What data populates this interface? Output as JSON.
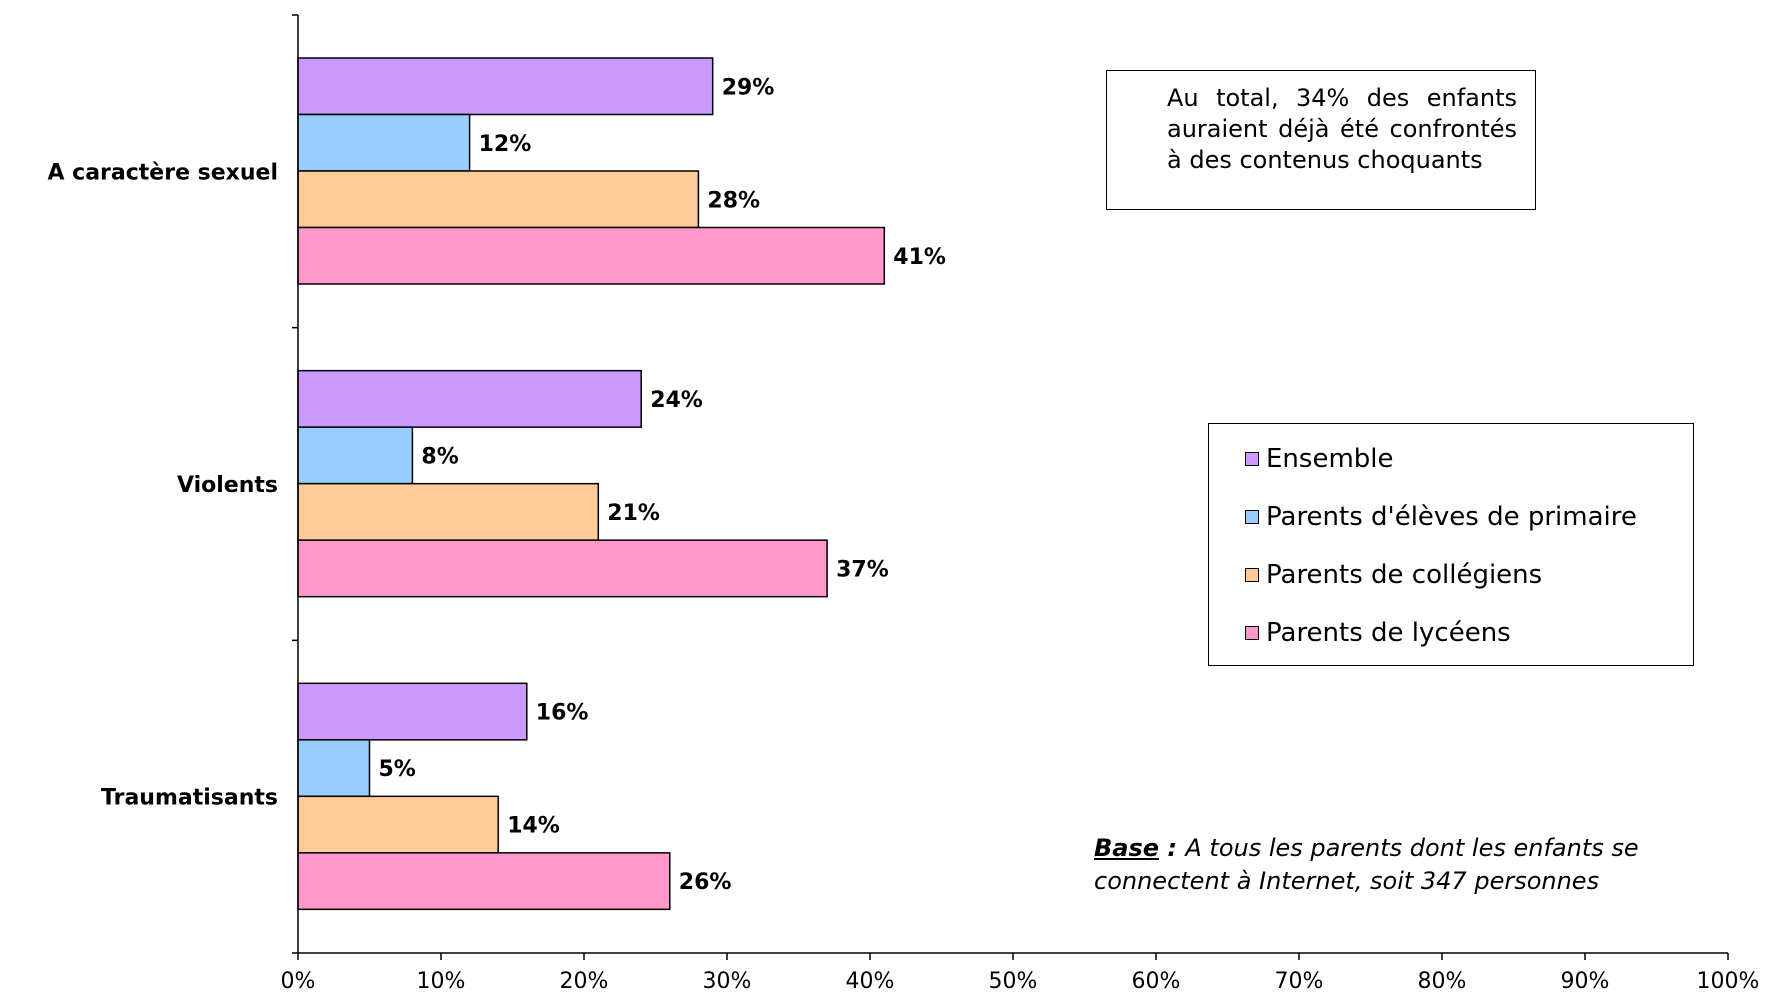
{
  "chart_data": {
    "type": "bar",
    "orientation": "horizontal",
    "categories": [
      "A caractère sexuel",
      "Violents",
      "Traumatisants"
    ],
    "series": [
      {
        "name": "Ensemble",
        "color": "#CC99FF",
        "values": [
          29,
          24,
          16
        ]
      },
      {
        "name": "Parents d'élèves de primaire",
        "color": "#99CCFF",
        "values": [
          12,
          8,
          5
        ]
      },
      {
        "name": "Parents de collégiens",
        "color": "#FFCC99",
        "values": [
          28,
          21,
          14
        ]
      },
      {
        "name": "Parents de lycéens",
        "color": "#FF99CC",
        "values": [
          41,
          37,
          26
        ]
      }
    ],
    "value_labels": [
      [
        "29%",
        "24%",
        "16%"
      ],
      [
        "12%",
        "8%",
        "5%"
      ],
      [
        "28%",
        "21%",
        "14%"
      ],
      [
        "41%",
        "37%",
        "26%"
      ]
    ],
    "xlim": [
      0,
      100
    ],
    "x_ticks": [
      "0%",
      "10%",
      "20%",
      "30%",
      "40%",
      "50%",
      "60%",
      "70%",
      "80%",
      "90%",
      "100%"
    ],
    "grid": false,
    "legend_position": "right"
  },
  "note": {
    "text": "Au total, 34% des enfants auraient déjà été confrontés à des contenus choquants"
  },
  "base_note": {
    "label": "Base",
    "separator": " : ",
    "text": "A tous les parents dont les enfants se connectent à Internet, soit 347 personnes"
  }
}
